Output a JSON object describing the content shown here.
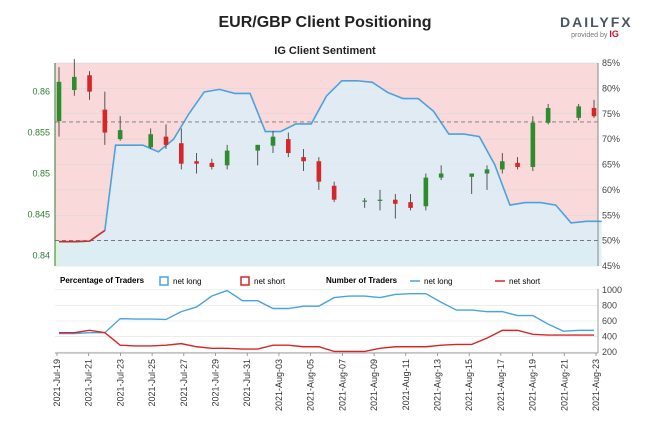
{
  "header": {
    "title": "EUR/GBP Client Positioning",
    "subtitle": "IG Client Sentiment",
    "brand_name": "DAILYFX",
    "brand_sub": "provided by",
    "brand_ig": "IG"
  },
  "colors": {
    "long": "#4aa3df",
    "short": "#d62728",
    "bull": "#2e8b2e",
    "bear": "#d62728",
    "area_fill": "#dcedf8",
    "bg_top": "#f9d9d9",
    "bg_bottom": "#dff2d8",
    "left_axis": "#2e7d32"
  },
  "chart_data": [
    {
      "type": "candlestick+line",
      "title": "IG Client Sentiment",
      "y_left_ticks": [
        "0.84",
        "0.845",
        "0.85",
        "0.855",
        "0.86"
      ],
      "y_left_values": [
        0.84,
        0.845,
        0.85,
        0.855,
        0.86
      ],
      "y_left_range": [
        0.8387,
        0.8635
      ],
      "y_right_ticks": [
        "45%",
        "50%",
        "55%",
        "60%",
        "65%",
        "70%",
        "75%",
        "80%",
        "85%"
      ],
      "y_right_values": [
        45,
        50,
        55,
        60,
        65,
        70,
        75,
        80,
        85
      ],
      "y_right_range": [
        45,
        85
      ],
      "reference_lines": {
        "price": 0.8454,
        "percent": 50
      },
      "candles": [
        {
          "x": 0,
          "o": 0.8564,
          "h": 0.863,
          "l": 0.8545,
          "c": 0.8612
        },
        {
          "x": 1,
          "o": 0.8602,
          "h": 0.864,
          "l": 0.8595,
          "c": 0.8618
        },
        {
          "x": 2,
          "o": 0.862,
          "h": 0.8625,
          "l": 0.859,
          "c": 0.86
        },
        {
          "x": 3,
          "o": 0.8578,
          "h": 0.86,
          "l": 0.8535,
          "c": 0.855
        },
        {
          "x": 4,
          "o": 0.8542,
          "h": 0.857,
          "l": 0.854,
          "c": 0.8553
        },
        {
          "x": 6,
          "o": 0.8532,
          "h": 0.8555,
          "l": 0.853,
          "c": 0.8548
        },
        {
          "x": 7,
          "o": 0.8545,
          "h": 0.856,
          "l": 0.853,
          "c": 0.8535
        },
        {
          "x": 8,
          "o": 0.8537,
          "h": 0.8555,
          "l": 0.8505,
          "c": 0.8512
        },
        {
          "x": 9,
          "o": 0.8515,
          "h": 0.8525,
          "l": 0.85,
          "c": 0.8512
        },
        {
          "x": 10,
          "o": 0.8513,
          "h": 0.8518,
          "l": 0.8505,
          "c": 0.8508
        },
        {
          "x": 11,
          "o": 0.851,
          "h": 0.8535,
          "l": 0.8505,
          "c": 0.8528
        },
        {
          "x": 13,
          "o": 0.8528,
          "h": 0.8535,
          "l": 0.851,
          "c": 0.8535
        },
        {
          "x": 14,
          "o": 0.8534,
          "h": 0.8552,
          "l": 0.8525,
          "c": 0.8545
        },
        {
          "x": 15,
          "o": 0.8542,
          "h": 0.855,
          "l": 0.852,
          "c": 0.8525
        },
        {
          "x": 16,
          "o": 0.852,
          "h": 0.853,
          "l": 0.8503,
          "c": 0.8515
        },
        {
          "x": 17,
          "o": 0.8515,
          "h": 0.852,
          "l": 0.848,
          "c": 0.849
        },
        {
          "x": 18,
          "o": 0.8485,
          "h": 0.849,
          "l": 0.8465,
          "c": 0.8468
        },
        {
          "x": 20,
          "o": 0.8466,
          "h": 0.847,
          "l": 0.8458,
          "c": 0.8467
        },
        {
          "x": 21,
          "o": 0.8467,
          "h": 0.848,
          "l": 0.8455,
          "c": 0.8468
        },
        {
          "x": 22,
          "o": 0.8468,
          "h": 0.8475,
          "l": 0.8445,
          "c": 0.8463
        },
        {
          "x": 23,
          "o": 0.8465,
          "h": 0.8475,
          "l": 0.8455,
          "c": 0.8458
        },
        {
          "x": 24,
          "o": 0.846,
          "h": 0.85,
          "l": 0.8455,
          "c": 0.8495
        },
        {
          "x": 25,
          "o": 0.8495,
          "h": 0.851,
          "l": 0.8492,
          "c": 0.85
        },
        {
          "x": 27,
          "o": 0.8496,
          "h": 0.85,
          "l": 0.8475,
          "c": 0.85
        },
        {
          "x": 28,
          "o": 0.85,
          "h": 0.851,
          "l": 0.848,
          "c": 0.8505
        },
        {
          "x": 29,
          "o": 0.8505,
          "h": 0.8525,
          "l": 0.85,
          "c": 0.8515
        },
        {
          "x": 30,
          "o": 0.8513,
          "h": 0.852,
          "l": 0.8505,
          "c": 0.8508
        },
        {
          "x": 31,
          "o": 0.8508,
          "h": 0.857,
          "l": 0.8503,
          "c": 0.8562
        },
        {
          "x": 32,
          "o": 0.8562,
          "h": 0.8585,
          "l": 0.856,
          "c": 0.858
        },
        {
          "x": 34,
          "o": 0.8568,
          "h": 0.8585,
          "l": 0.8565,
          "c": 0.8582
        },
        {
          "x": 35,
          "o": 0.858,
          "h": 0.859,
          "l": 0.8568,
          "c": 0.857
        }
      ],
      "net_long_pct": [
        [
          0,
          49.8
        ],
        [
          1,
          49.8
        ],
        [
          2,
          49.9
        ],
        [
          3,
          52.0
        ],
        [
          3.7,
          68.8
        ],
        [
          4.5,
          68.8
        ],
        [
          5.5,
          68.8
        ],
        [
          6.5,
          67.5
        ],
        [
          7.5,
          70.0
        ],
        [
          8.5,
          75.0
        ],
        [
          9.5,
          79.3
        ],
        [
          10.5,
          79.8
        ],
        [
          11.5,
          79.0
        ],
        [
          12.5,
          79.0
        ],
        [
          13.5,
          71.5
        ],
        [
          14.5,
          71.5
        ],
        [
          15.5,
          73.0
        ],
        [
          16.5,
          73.0
        ],
        [
          17.5,
          78.5
        ],
        [
          18.5,
          81.5
        ],
        [
          19.5,
          81.5
        ],
        [
          20.5,
          81.2
        ],
        [
          21.5,
          79.2
        ],
        [
          22.5,
          78.0
        ],
        [
          23.5,
          78.0
        ],
        [
          24.5,
          75.5
        ],
        [
          25.5,
          71.0
        ],
        [
          26.5,
          71.0
        ],
        [
          27.5,
          70.5
        ],
        [
          28.5,
          65.0
        ],
        [
          29.5,
          57.0
        ],
        [
          30.5,
          57.5
        ],
        [
          31.5,
          57.5
        ],
        [
          32.5,
          57.0
        ],
        [
          33.5,
          53.5
        ],
        [
          34.5,
          53.8
        ],
        [
          35.5,
          53.8
        ]
      ],
      "x_tick_labels": [
        "2021-Jul-19",
        "2021-Jul-21",
        "2021-Jul-23",
        "2021-Jul-25",
        "2021-Jul-27",
        "2021-Jul-29",
        "2021-Jul-31",
        "2021-Aug-03",
        "2021-Aug-05",
        "2021-Aug-07",
        "2021-Aug-09",
        "2021-Aug-11",
        "2021-Aug-13",
        "2021-Aug-15",
        "2021-Aug-17",
        "2021-Aug-19",
        "2021-Aug-21",
        "2021-Aug-23"
      ]
    },
    {
      "type": "line",
      "title": "Number of Traders",
      "y_ticks": [
        "200",
        "400",
        "600",
        "800",
        "1000"
      ],
      "y_values": [
        200,
        400,
        600,
        800,
        1000
      ],
      "y_range": [
        190,
        1010
      ],
      "series": [
        {
          "name": "net long",
          "values": [
            [
              0,
              440
            ],
            [
              1,
              440
            ],
            [
              2,
              450
            ],
            [
              3,
              450
            ],
            [
              4,
              630
            ],
            [
              5,
              625
            ],
            [
              6,
              625
            ],
            [
              7,
              620
            ],
            [
              8,
              720
            ],
            [
              9,
              780
            ],
            [
              10,
              920
            ],
            [
              11,
              990
            ],
            [
              12,
              860
            ],
            [
              13,
              860
            ],
            [
              14,
              760
            ],
            [
              15,
              760
            ],
            [
              16,
              790
            ],
            [
              17,
              790
            ],
            [
              18,
              900
            ],
            [
              19,
              920
            ],
            [
              20,
              920
            ],
            [
              21,
              900
            ],
            [
              22,
              940
            ],
            [
              23,
              950
            ],
            [
              24,
              950
            ],
            [
              25,
              840
            ],
            [
              26,
              740
            ],
            [
              27,
              740
            ],
            [
              28,
              720
            ],
            [
              29,
              720
            ],
            [
              30,
              670
            ],
            [
              31,
              670
            ],
            [
              32,
              560
            ],
            [
              33,
              470
            ],
            [
              34,
              480
            ],
            [
              35,
              480
            ]
          ]
        },
        {
          "name": "net short",
          "values": [
            [
              0,
              450
            ],
            [
              1,
              450
            ],
            [
              2,
              480
            ],
            [
              3,
              450
            ],
            [
              4,
              290
            ],
            [
              5,
              280
            ],
            [
              6,
              280
            ],
            [
              7,
              290
            ],
            [
              8,
              310
            ],
            [
              9,
              270
            ],
            [
              10,
              250
            ],
            [
              11,
              250
            ],
            [
              12,
              240
            ],
            [
              13,
              240
            ],
            [
              14,
              290
            ],
            [
              15,
              290
            ],
            [
              16,
              270
            ],
            [
              17,
              270
            ],
            [
              18,
              210
            ],
            [
              19,
              210
            ],
            [
              20,
              210
            ],
            [
              21,
              250
            ],
            [
              22,
              270
            ],
            [
              23,
              270
            ],
            [
              24,
              270
            ],
            [
              25,
              290
            ],
            [
              26,
              300
            ],
            [
              27,
              300
            ],
            [
              28,
              380
            ],
            [
              29,
              480
            ],
            [
              30,
              480
            ],
            [
              31,
              430
            ],
            [
              32,
              420
            ],
            [
              33,
              420
            ],
            [
              34,
              420
            ],
            [
              35,
              420
            ]
          ]
        }
      ]
    }
  ],
  "legend": {
    "pct_label": "Percentage of Traders",
    "net_long": "net long",
    "net_short": "net short",
    "num_label": "Number of Traders"
  }
}
